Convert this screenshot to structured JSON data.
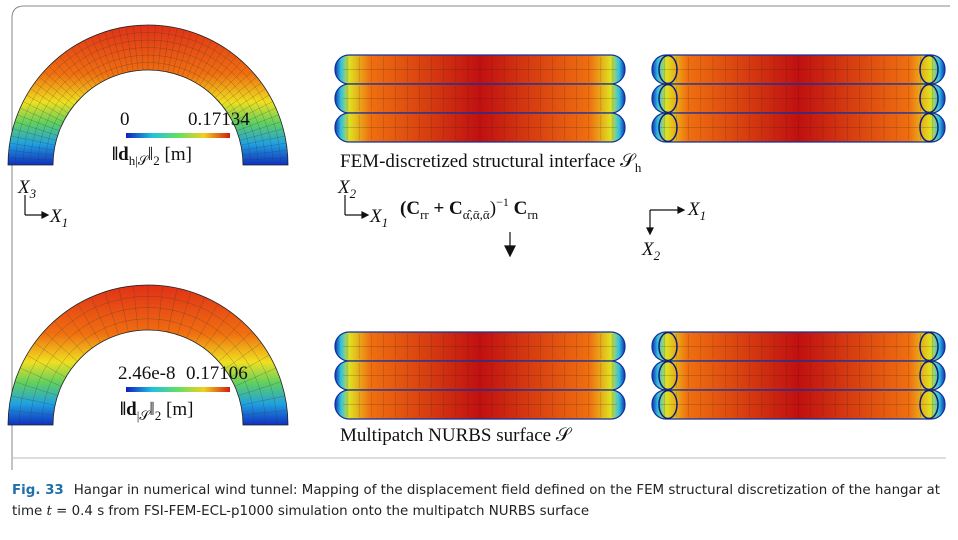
{
  "figure": {
    "top": {
      "colorbar_min": "0",
      "colorbar_max": "0.17134",
      "norm_label": [
        "‖d",
        "h|𝒮",
        "‖",
        "2",
        " [m]"
      ],
      "surface_label": [
        "FEM-discretized structural interface 𝒮",
        "h"
      ]
    },
    "axes_left": {
      "vertical": [
        "X",
        "3"
      ],
      "horizontal": [
        "X",
        "1"
      ]
    },
    "axes_middle": {
      "vertical": [
        "X",
        "2"
      ],
      "horizontal": [
        "X",
        "1"
      ]
    },
    "axes_right": {
      "horizontal": [
        "X",
        "1"
      ],
      "vertical": [
        "X",
        "2"
      ]
    },
    "formula": [
      "(C",
      "rr",
      " + C",
      "α̂,ᾱ,ᾱ",
      ")",
      "−1",
      " C",
      "rn"
    ],
    "bottom": {
      "colorbar_min": "2.46e-8",
      "colorbar_max": "0.17106",
      "norm_label": [
        "‖d",
        "|𝒮",
        "‖",
        "2",
        " [m]"
      ],
      "surface_label": "Multipatch NURBS surface 𝒮"
    }
  },
  "caption": {
    "label": "Fig. 33",
    "text_before": "Hangar in numerical wind tunnel: Mapping of the displacement field defined on the FEM structural discretization of the hangar at time ",
    "variable": "t",
    "text_after": " = 0.4 s from FSI-FEM-ECL-p1000 simulation onto the multipatch NURBS surface"
  }
}
